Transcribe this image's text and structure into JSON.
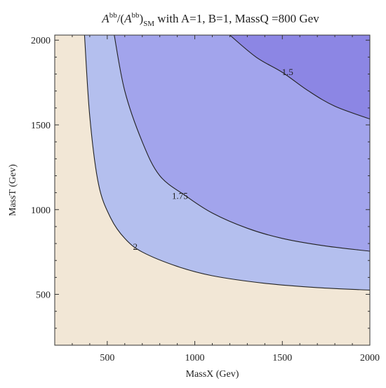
{
  "chart_data": {
    "type": "contour",
    "title_parts": {
      "a1": "A",
      "sup1": "bb",
      "mid": "/(",
      "a2": "A",
      "sup2": "bb",
      "close": ")",
      "sub": "SM",
      "rest": "  with   A=1, B=1, MassQ =800  Gev"
    },
    "xlabel": "MassX (Gev)",
    "ylabel": "MassT (Gev)",
    "xlim": [
      200,
      2000
    ],
    "ylim": [
      200,
      2030
    ],
    "xticks": [
      500,
      1000,
      1500,
      2000
    ],
    "yticks": [
      500,
      1000,
      1500,
      2000
    ],
    "x_tick_labels": [
      "500",
      "1000",
      "1500",
      "2000"
    ],
    "y_tick_labels": [
      "500",
      "1000",
      "1500",
      "2000"
    ],
    "levels": [
      {
        "value": 2,
        "label": "2",
        "label_at": [
          660,
          780
        ],
        "points": [
          [
            370,
            2030
          ],
          [
            400,
            1550
          ],
          [
            450,
            1150
          ],
          [
            520,
            950
          ],
          [
            600,
            830
          ],
          [
            700,
            750
          ],
          [
            900,
            665
          ],
          [
            1100,
            610
          ],
          [
            1400,
            565
          ],
          [
            1700,
            540
          ],
          [
            2000,
            525
          ]
        ]
      },
      {
        "value": 1.75,
        "label": "1.75",
        "label_at": [
          915,
          1080
        ],
        "points": [
          [
            540,
            2030
          ],
          [
            600,
            1700
          ],
          [
            700,
            1400
          ],
          [
            800,
            1200
          ],
          [
            950,
            1080
          ],
          [
            1100,
            980
          ],
          [
            1300,
            890
          ],
          [
            1500,
            830
          ],
          [
            1750,
            785
          ],
          [
            2000,
            755
          ]
        ]
      },
      {
        "value": 1.5,
        "label": "1.5",
        "label_at": [
          1530,
          1810
        ],
        "points": [
          [
            1200,
            2030
          ],
          [
            1350,
            1900
          ],
          [
            1500,
            1810
          ],
          [
            1650,
            1700
          ],
          [
            1800,
            1610
          ],
          [
            2000,
            1535
          ]
        ]
      }
    ],
    "colors": {
      "region_above_2": "#f2e7d6",
      "region_1_75_to_2": "#b4bfee",
      "region_1_5_to_1_75": "#a2a4ec",
      "region_below_1_5": "#8c86e4",
      "contour_line": "#222222",
      "frame": "#333333"
    }
  }
}
